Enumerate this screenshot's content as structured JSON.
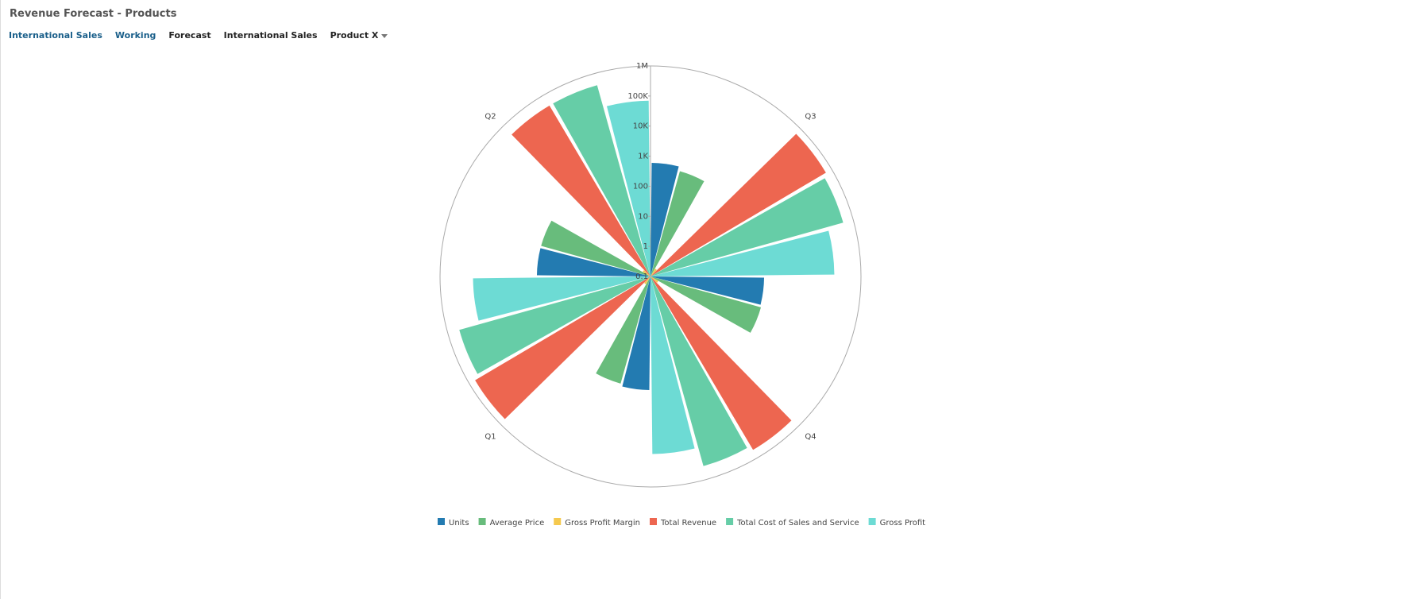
{
  "header": {
    "title": "Revenue Forecast - Products",
    "pov": [
      "International Sales",
      "Working",
      "Forecast",
      "International Sales",
      "Product X"
    ]
  },
  "chart_data": {
    "type": "polar-bar",
    "log_scale": true,
    "categories": [
      "Q1",
      "Q2",
      "Q3",
      "Q4"
    ],
    "ylim": [
      0.1,
      1000000
    ],
    "yticks": [
      0.1,
      1,
      10,
      100,
      {
        "value": 1000,
        "label": "1K"
      },
      {
        "value": 10000,
        "label": "10K"
      },
      {
        "value": 100000,
        "label": "100K"
      },
      {
        "value": 1000000,
        "label": "1M"
      }
    ],
    "series": [
      {
        "name": "Units",
        "color": "#237bb1",
        "values": [
          600,
          600,
          600,
          600
        ]
      },
      {
        "name": "Average Price",
        "color": "#68bc7c",
        "values": [
          500,
          600,
          430,
          650
        ]
      },
      {
        "name": "Gross Profit Margin",
        "color": "#f5c94e",
        "values": [
          0.2,
          0.2,
          0.2,
          0.2
        ]
      },
      {
        "name": "Total Revenue",
        "color": "#ed6650",
        "values": [
          600000,
          400000,
          600000,
          500000
        ]
      },
      {
        "name": "Total Cost of Sales and Service",
        "color": "#66cda7",
        "values": [
          400000,
          400000,
          450000,
          350000
        ]
      },
      {
        "name": "Gross Profit",
        "color": "#6ddbd4",
        "values": [
          80000,
          70000,
          130000,
          80000
        ]
      }
    ]
  }
}
